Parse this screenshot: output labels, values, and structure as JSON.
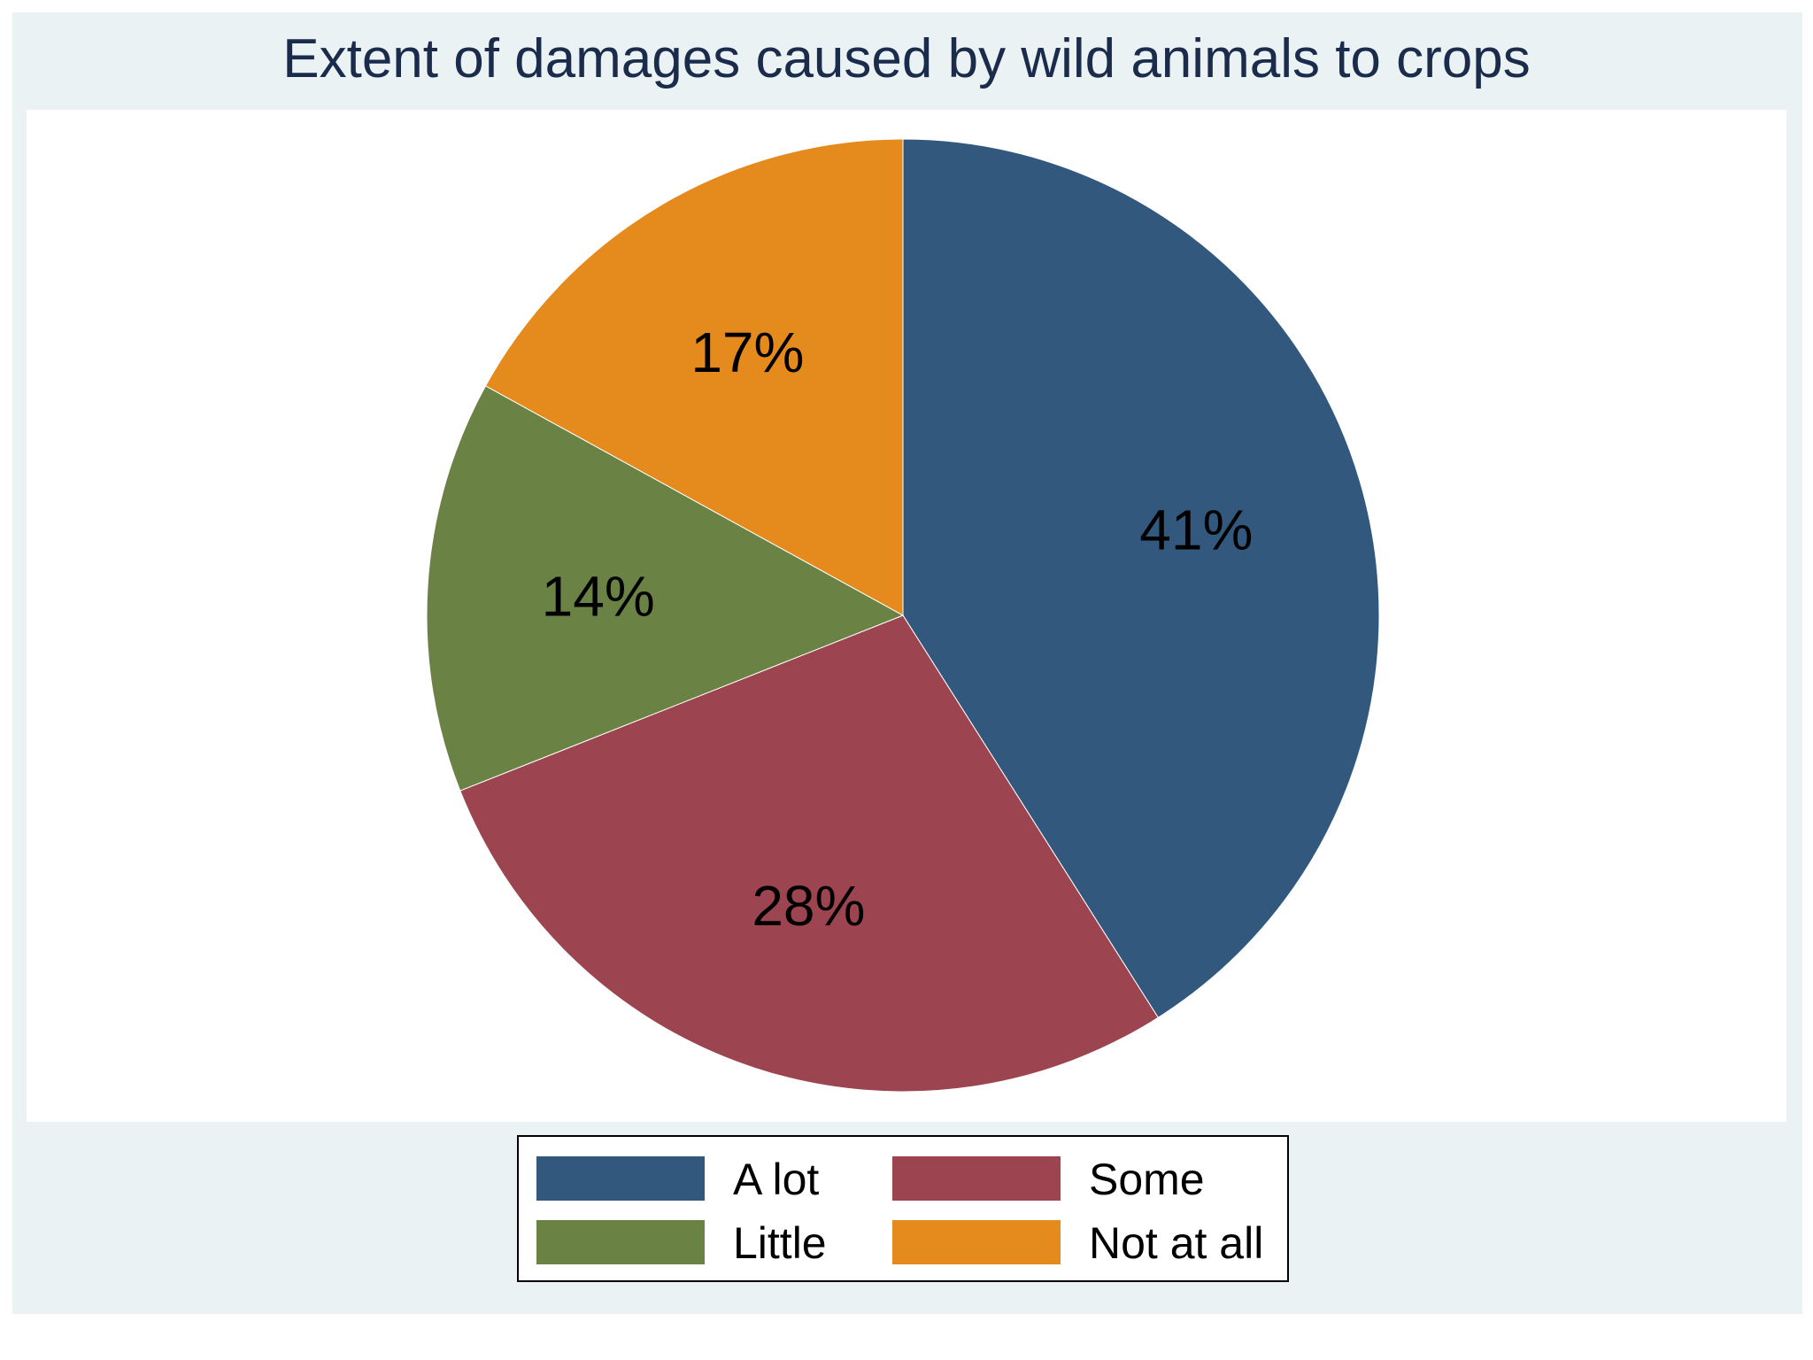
{
  "chart_data": {
    "type": "pie",
    "title": "Extent of damages caused by wild animals to crops",
    "categories": [
      "A lot",
      "Some",
      "Little",
      "Not at all"
    ],
    "values": [
      41,
      28,
      14,
      17
    ],
    "labels": [
      "41%",
      "28%",
      "14%",
      "17%"
    ],
    "colors": [
      "#33587e",
      "#9c4550",
      "#6a8344",
      "#e58a1c"
    ],
    "legend_position": "bottom"
  }
}
